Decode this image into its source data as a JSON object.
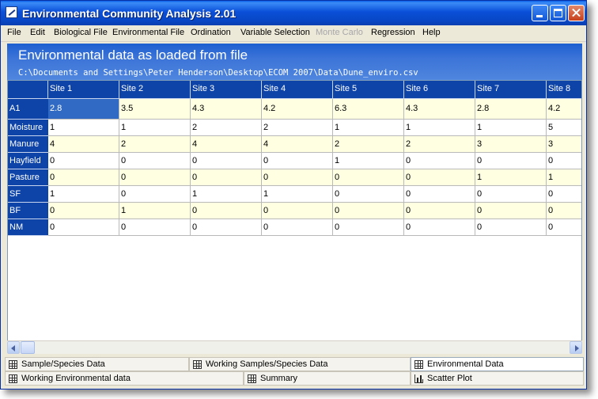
{
  "window": {
    "title": "Environmental Community Analysis 2.01"
  },
  "menu": [
    {
      "label": "File",
      "disabled": false
    },
    {
      "label": "Edit",
      "disabled": false
    },
    {
      "label": "Biological File",
      "disabled": false
    },
    {
      "label": "Environmental File",
      "disabled": false
    },
    {
      "label": "Ordination",
      "disabled": false
    },
    {
      "label": "Variable Selection",
      "disabled": false
    },
    {
      "label": "Monte Carlo",
      "disabled": true
    },
    {
      "label": "Regression",
      "disabled": false
    },
    {
      "label": "Help",
      "disabled": false
    }
  ],
  "header": {
    "title": "Environmental data as loaded from file",
    "path": "C:\\Documents and Settings\\Peter Henderson\\Desktop\\ECOM 2007\\Data\\Dune_enviro.csv"
  },
  "grid": {
    "columns": [
      "Site 1",
      "Site 2",
      "Site 3",
      "Site 4",
      "Site 5",
      "Site 6",
      "Site 7",
      "Site 8"
    ],
    "rows": [
      {
        "name": "A1",
        "values": [
          "2.8",
          "3.5",
          "4.3",
          "4.2",
          "6.3",
          "4.3",
          "2.8",
          "4.2"
        ]
      },
      {
        "name": "Moisture",
        "values": [
          "1",
          "1",
          "2",
          "2",
          "1",
          "1",
          "1",
          "5"
        ]
      },
      {
        "name": "Manure",
        "values": [
          "4",
          "2",
          "4",
          "4",
          "2",
          "2",
          "3",
          "3"
        ]
      },
      {
        "name": "Hayfield",
        "values": [
          "0",
          "0",
          "0",
          "0",
          "1",
          "0",
          "0",
          "0"
        ]
      },
      {
        "name": "Pasture",
        "values": [
          "0",
          "0",
          "0",
          "0",
          "0",
          "0",
          "1",
          "1"
        ]
      },
      {
        "name": "SF",
        "values": [
          "1",
          "0",
          "1",
          "1",
          "0",
          "0",
          "0",
          "0"
        ]
      },
      {
        "name": "BF",
        "values": [
          "0",
          "1",
          "0",
          "0",
          "0",
          "0",
          "0",
          "0"
        ]
      },
      {
        "name": "NM",
        "values": [
          "0",
          "0",
          "0",
          "0",
          "0",
          "0",
          "0",
          "0"
        ]
      }
    ]
  },
  "tabs": {
    "row1": [
      {
        "label": "Sample/Species Data",
        "icon": "grid-icon",
        "active": false
      },
      {
        "label": "Working Samples/Species Data",
        "icon": "grid-icon",
        "active": false
      },
      {
        "label": "Environmental Data",
        "icon": "grid-icon",
        "active": true
      }
    ],
    "row2": [
      {
        "label": "Working Environmental data",
        "icon": "grid-icon",
        "active": false
      },
      {
        "label": "Summary",
        "icon": "grid-icon",
        "active": false
      },
      {
        "label": "Scatter Plot",
        "icon": "bar-chart-icon",
        "active": false
      }
    ]
  }
}
